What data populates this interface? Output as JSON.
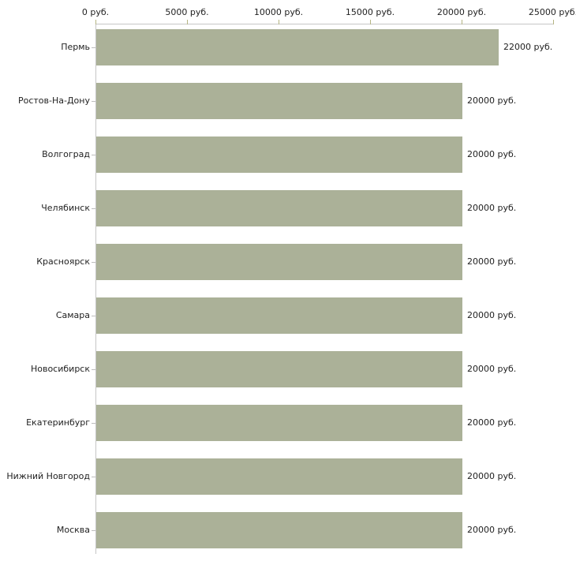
{
  "chart_data": {
    "type": "bar",
    "orientation": "horizontal",
    "title": "",
    "categories": [
      "Пермь",
      "Ростов-На-Дону",
      "Волгоград",
      "Челябинск",
      "Красноярск",
      "Самара",
      "Новосибирск",
      "Екатеринбург",
      "Нижний Новгород",
      "Москва"
    ],
    "values": [
      22000,
      20000,
      20000,
      20000,
      20000,
      20000,
      20000,
      20000,
      20000,
      20000
    ],
    "value_labels": [
      "22000 руб.",
      "20000 руб.",
      "20000 руб.",
      "20000 руб.",
      "20000 руб.",
      "20000 руб.",
      "20000 руб.",
      "20000 руб.",
      "20000 руб.",
      "20000 руб."
    ],
    "unit": "руб.",
    "x_ticks": [
      {
        "label": "0 руб.",
        "value": 0
      },
      {
        "label": "5000 руб.",
        "value": 5000
      },
      {
        "label": "10000 руб.",
        "value": 10000
      },
      {
        "label": "15000 руб.",
        "value": 15000
      },
      {
        "label": "20000 руб.",
        "value": 20000
      },
      {
        "label": "25000 руб.",
        "value": 25000
      }
    ],
    "xlim": [
      0,
      25000
    ],
    "grid": false,
    "legend": false,
    "axis_position": "top",
    "colors": {
      "bar": "#abb198",
      "axis_line": "#c6c6c6",
      "x_tick": "#b5b584",
      "category_tick": "#bdbdbd",
      "text": "#222222",
      "background": "#ffffff"
    }
  }
}
